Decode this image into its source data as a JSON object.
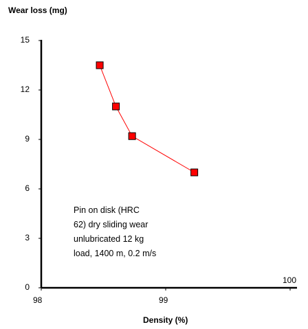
{
  "chart_data": {
    "type": "line",
    "title": "",
    "ylabel": "Wear loss (mg)",
    "xlabel": "Density (%)",
    "xlim": [
      98,
      100
    ],
    "ylim": [
      0,
      15
    ],
    "x_ticks": [
      98,
      99,
      100
    ],
    "y_ticks": [
      0,
      3,
      6,
      9,
      12,
      15
    ],
    "grid": false,
    "legend": "none",
    "series": [
      {
        "color": "#ff0000",
        "marker": "square",
        "x": [
          98.47,
          98.6,
          98.73,
          99.23
        ],
        "y": [
          13.5,
          11.0,
          9.2,
          7.0
        ]
      }
    ],
    "annotation": [
      "Pin on disk (HRC",
      "62) dry sliding wear",
      "unlubricated 12 kg",
      "load, 1400 m, 0.2 m/s"
    ]
  }
}
